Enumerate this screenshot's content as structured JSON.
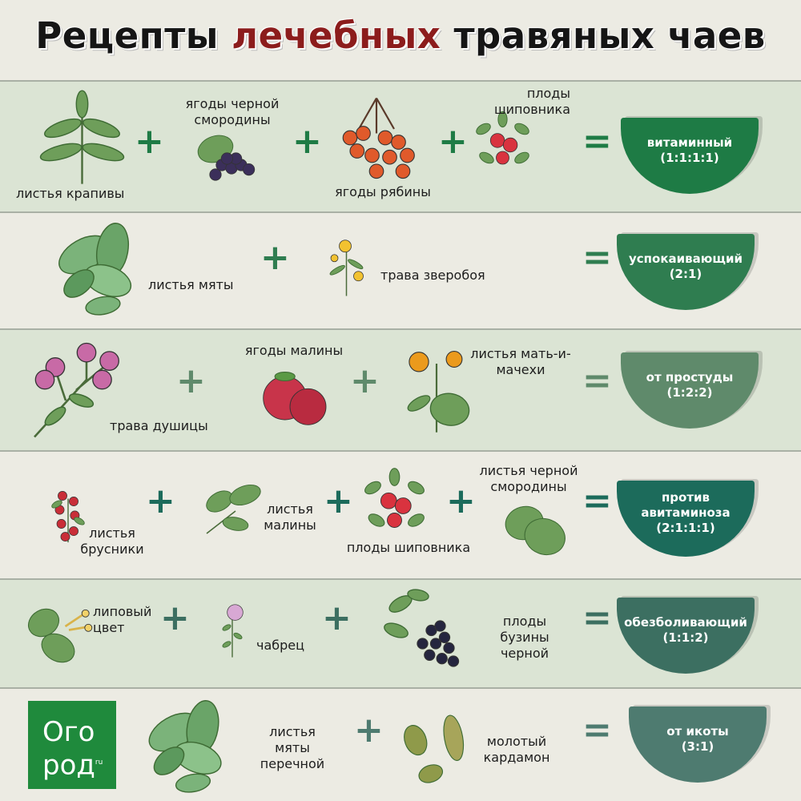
{
  "title": {
    "part1": "Рецепты",
    "part2": "лечебных",
    "part3": "травяных чаев",
    "accent": "#8c1c1c"
  },
  "logo": {
    "line1": "Ого",
    "line2": "род",
    "suffix": "ru"
  },
  "recipes": [
    {
      "bg": "green",
      "color": "#1e7b45",
      "name": "витаминный",
      "ratio": "(1:1:1:1)",
      "ingredients": [
        {
          "label": "листья крапивы",
          "icon": "nettle-icon"
        },
        {
          "label": "ягоды черной смородины",
          "icon": "blackcurrant-icon"
        },
        {
          "label": "ягоды рябины",
          "icon": "rowan-icon"
        },
        {
          "label": "плоды шиповника",
          "icon": "rosehip-icon"
        }
      ]
    },
    {
      "bg": "beige",
      "color": "#2f7d50",
      "name": "успокаивающий",
      "ratio": "(2:1)",
      "ingredients": [
        {
          "label": "листья мяты",
          "icon": "mint-icon"
        },
        {
          "label": "трава зверобоя",
          "icon": "st-johns-wort-icon"
        }
      ]
    },
    {
      "bg": "green",
      "color": "#5f8a6b",
      "name": "от простуды",
      "ratio": "(1:2:2)",
      "ingredients": [
        {
          "label": "трава душицы",
          "icon": "oregano-icon"
        },
        {
          "label": "ягоды малины",
          "icon": "raspberry-icon"
        },
        {
          "label": "листья мать-и-мачехи",
          "icon": "coltsfoot-icon"
        }
      ]
    },
    {
      "bg": "beige",
      "color": "#1c6b5b",
      "name": "против авитаминоза",
      "ratio": "(2:1:1:1)",
      "ingredients": [
        {
          "label": "листья брусники",
          "icon": "lingonberry-icon"
        },
        {
          "label": "листья малины",
          "icon": "raspberry-leaf-icon"
        },
        {
          "label": "плоды шиповника",
          "icon": "rosehip-icon"
        },
        {
          "label": "листья черной смородины",
          "icon": "currant-leaf-icon"
        }
      ]
    },
    {
      "bg": "green",
      "color": "#3c6f61",
      "name": "обезболивающий",
      "ratio": "(1:1:2)",
      "ingredients": [
        {
          "label": "липовый цвет",
          "icon": "linden-icon"
        },
        {
          "label": "чабрец",
          "icon": "thyme-icon"
        },
        {
          "label": "плоды бузины черной",
          "icon": "elderberry-icon"
        }
      ]
    },
    {
      "bg": "beige",
      "color": "#4e7b70",
      "name": "от икоты",
      "ratio": "(3:1)",
      "ingredients": [
        {
          "label": "листья мяты перечной",
          "icon": "peppermint-icon"
        },
        {
          "label": "молотый кардамон",
          "icon": "cardamom-icon"
        }
      ]
    }
  ],
  "operators": {
    "plus": "+",
    "equals": "="
  }
}
